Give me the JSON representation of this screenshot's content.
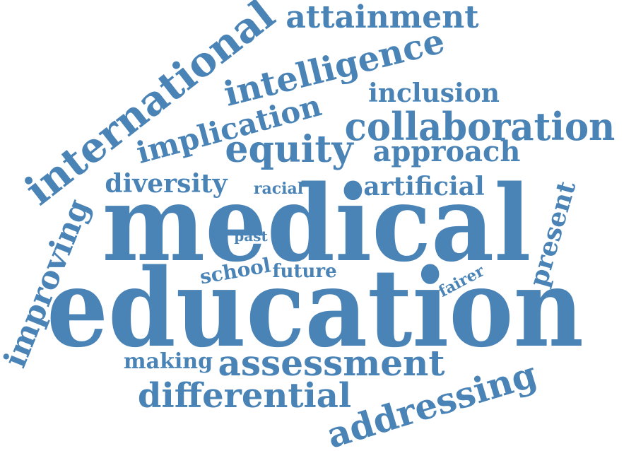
{
  "color": "#4a83b6",
  "words": {
    "medical": "medical",
    "education": "education",
    "international": "international",
    "attainment": "attainment",
    "intelligence": "intelligence",
    "inclusion": "inclusion",
    "implication": "implication",
    "collaboration": "collaboration",
    "equity": "equity",
    "approach": "approach",
    "diversity": "diversity",
    "racial": "racial",
    "artificial": "artificial",
    "improving": "improving",
    "present": "present",
    "past": "past",
    "school": "school",
    "future": "future",
    "fairer": "fairer",
    "making": "making",
    "assessment": "assessment",
    "differential": "differential",
    "addressing": "addressing"
  }
}
